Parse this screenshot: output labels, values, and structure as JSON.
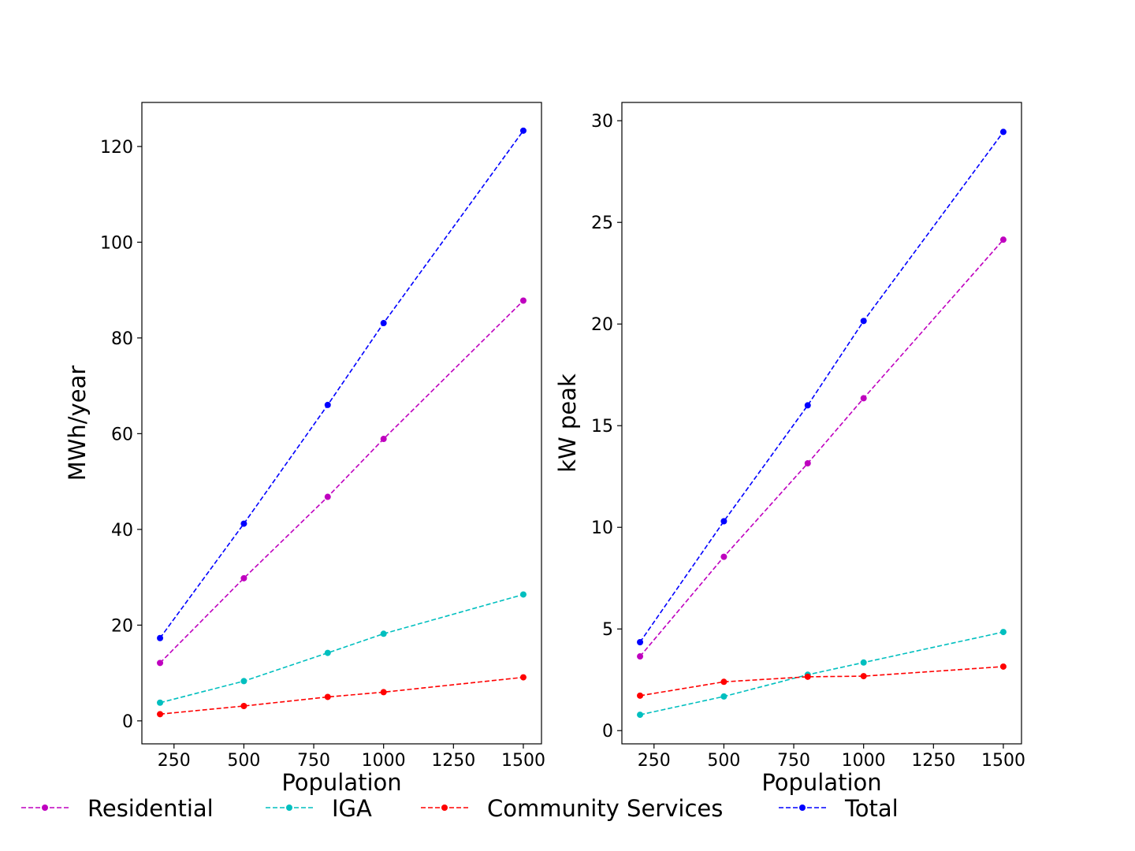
{
  "chart_data": [
    {
      "type": "line",
      "xlabel": "Population",
      "ylabel": "MWh/year",
      "x": [
        200,
        500,
        800,
        1000,
        1500
      ],
      "xticks": [
        250,
        500,
        750,
        1000,
        1250,
        1500
      ],
      "yticks": [
        0,
        20,
        40,
        60,
        80,
        100,
        120
      ],
      "xlim": [
        135,
        1565
      ],
      "ylim": [
        -4.8,
        129.2
      ],
      "grid": false,
      "series": [
        {
          "name": "Residential",
          "color": "#bf00bf",
          "line_style": "dashed",
          "marker": "circle",
          "values": [
            12.1,
            29.8,
            46.8,
            58.9,
            87.8
          ]
        },
        {
          "name": "IGA",
          "color": "#00bfbf",
          "line_style": "dashed",
          "marker": "circle",
          "values": [
            3.8,
            8.3,
            14.2,
            18.2,
            26.4
          ]
        },
        {
          "name": "Community Services",
          "color": "#ff0000",
          "line_style": "dashed",
          "marker": "circle",
          "values": [
            1.4,
            3.1,
            5.0,
            6.0,
            9.1
          ]
        },
        {
          "name": "Total",
          "color": "#0000ff",
          "line_style": "dashed",
          "marker": "circle",
          "values": [
            17.3,
            41.2,
            66.0,
            83.1,
            123.3
          ]
        }
      ]
    },
    {
      "type": "line",
      "xlabel": "Population",
      "ylabel": "kW peak",
      "x": [
        200,
        500,
        800,
        1000,
        1500
      ],
      "xticks": [
        250,
        500,
        750,
        1000,
        1250,
        1500
      ],
      "yticks": [
        0,
        5,
        10,
        15,
        20,
        25,
        30
      ],
      "xlim": [
        135,
        1565
      ],
      "ylim": [
        -0.65,
        30.9
      ],
      "grid": false,
      "series": [
        {
          "name": "Residential",
          "color": "#bf00bf",
          "line_style": "dashed",
          "marker": "circle",
          "values": [
            3.65,
            8.55,
            13.15,
            16.35,
            24.15
          ]
        },
        {
          "name": "IGA",
          "color": "#00bfbf",
          "line_style": "dashed",
          "marker": "circle",
          "values": [
            0.78,
            1.68,
            2.75,
            3.35,
            4.85
          ]
        },
        {
          "name": "Community Services",
          "color": "#ff0000",
          "line_style": "dashed",
          "marker": "circle",
          "values": [
            1.72,
            2.4,
            2.65,
            2.68,
            3.15
          ]
        },
        {
          "name": "Total",
          "color": "#0000ff",
          "line_style": "dashed",
          "marker": "circle",
          "values": [
            4.35,
            10.3,
            16.0,
            20.15,
            29.45
          ]
        }
      ]
    }
  ],
  "legend": {
    "placement": "bottom",
    "items": [
      {
        "label": "Residential",
        "color": "#bf00bf"
      },
      {
        "label": "IGA",
        "color": "#00bfbf"
      },
      {
        "label": "Community Services",
        "color": "#ff0000"
      },
      {
        "label": "Total",
        "color": "#0000ff"
      }
    ]
  }
}
